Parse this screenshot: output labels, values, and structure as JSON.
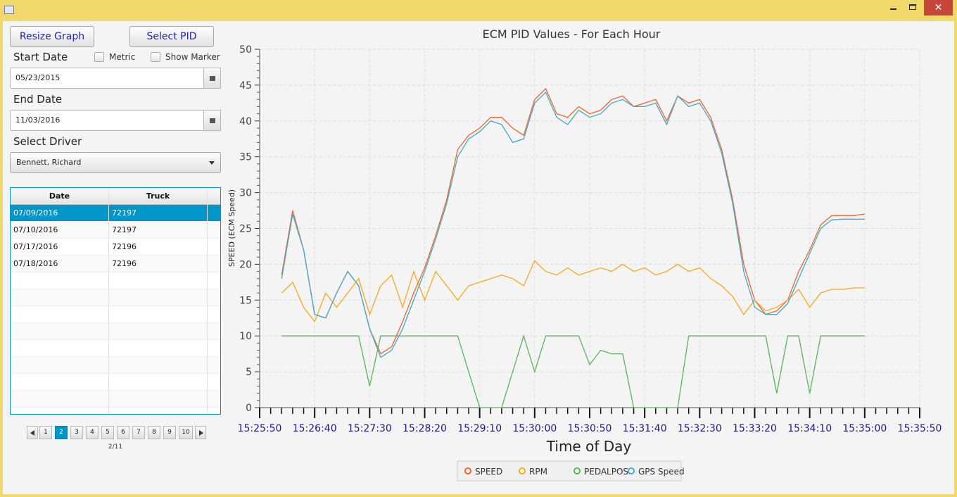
{
  "controls": {
    "resize_button": "Resize Graph",
    "pid_button": "Select PID",
    "start_label": "Start Date",
    "metric_label": "Metric",
    "marker_label": "Show Marker",
    "start_date": "05/23/2015",
    "end_label": "End Date",
    "end_date": "11/03/2016",
    "driver_label": "Select Driver",
    "driver": "Bennett, Richard"
  },
  "table": {
    "columns": [
      "Date",
      "Truck"
    ],
    "rows": [
      [
        "07/09/2016",
        "72197"
      ],
      [
        "07/10/2016",
        "72197"
      ],
      [
        "07/17/2016",
        "72196"
      ],
      [
        "07/18/2016",
        "72196"
      ]
    ],
    "selected_row": 0
  },
  "pagination": {
    "pages": [
      "1",
      "2",
      "3",
      "4",
      "5",
      "6",
      "7",
      "8",
      "9",
      "10"
    ],
    "current_index": 1,
    "status": "2/11"
  },
  "chart_data": {
    "type": "line",
    "title": "ECM PID Values - For Each Hour",
    "x_label": "Time of Day",
    "y_label": "SPEED  (ECM Speed)",
    "x": [
      55570,
      55580,
      55590,
      55600,
      55610,
      55620,
      55630,
      55640,
      55650,
      55660,
      55670,
      55680,
      55690,
      55700,
      55710,
      55720,
      55730,
      55740,
      55750,
      55760,
      55770,
      55780,
      55790,
      55800,
      55810,
      55820,
      55830,
      55840,
      55850,
      55860,
      55870,
      55880,
      55890,
      55900,
      55910,
      55920,
      55930,
      55940,
      55950,
      55960,
      55970,
      55980,
      55990,
      56000,
      56010,
      56020,
      56030,
      56040,
      56050,
      56060,
      56070,
      56080,
      56090,
      56100
    ],
    "xlim": [
      55550,
      56150
    ],
    "xticks": [
      {
        "value": 55550,
        "label": "15:25:50"
      },
      {
        "value": 55600,
        "label": "15:26:40"
      },
      {
        "value": 55650,
        "label": "15:27:30"
      },
      {
        "value": 55700,
        "label": "15:28:20"
      },
      {
        "value": 55750,
        "label": "15:29:10"
      },
      {
        "value": 55800,
        "label": "15:30:00"
      },
      {
        "value": 55850,
        "label": "15:30:50"
      },
      {
        "value": 55900,
        "label": "15:31:40"
      },
      {
        "value": 55950,
        "label": "15:32:30"
      },
      {
        "value": 56000,
        "label": "15:33:20"
      },
      {
        "value": 56050,
        "label": "15:34:10"
      },
      {
        "value": 56100,
        "label": "15:35:00"
      },
      {
        "value": 56150,
        "label": "15:35:50"
      }
    ],
    "ylim": [
      0,
      50
    ],
    "yticks": [
      0,
      5,
      10,
      15,
      20,
      25,
      30,
      35,
      40,
      45,
      50
    ],
    "grid": true,
    "series": [
      {
        "name": "SPEED",
        "color": "#f3622d",
        "values": [
          18.5,
          27.5,
          22,
          13,
          12.5,
          16,
          19,
          17,
          11,
          7.5,
          8.5,
          12,
          16,
          19.5,
          24,
          29,
          36,
          38,
          39,
          40.5,
          40.5,
          39,
          38,
          43,
          44.5,
          41,
          40.5,
          42,
          41,
          41.5,
          43,
          43.5,
          42,
          42.5,
          43,
          40,
          43.5,
          42.5,
          43,
          40.5,
          36,
          29,
          20,
          15,
          13,
          13.5,
          15,
          19,
          22,
          25.5,
          26.8,
          26.8,
          26.8,
          27
        ]
      },
      {
        "name": "RPM",
        "color": "#fba71b",
        "values": [
          16,
          17.5,
          14,
          12,
          16,
          14,
          16,
          18,
          13,
          17,
          18.5,
          14,
          19,
          15,
          19,
          17,
          15,
          17,
          17.5,
          18,
          18.5,
          18,
          17,
          20.5,
          19,
          18.5,
          19.5,
          18.5,
          19,
          19.5,
          19,
          20,
          19,
          19.5,
          18.5,
          19,
          20,
          19,
          19.5,
          18,
          17,
          15.5,
          13,
          15,
          13.5,
          14,
          15,
          16.5,
          14,
          16,
          16.5,
          16.5,
          16.7,
          16.7
        ]
      },
      {
        "name": "PEDALPOS",
        "color": "#57b757",
        "values": [
          10,
          10,
          10,
          10,
          10,
          10,
          10,
          10,
          3,
          10,
          10,
          10,
          10,
          10,
          10,
          10,
          10,
          5,
          0,
          0,
          0,
          5,
          10,
          5,
          10,
          10,
          10,
          10,
          6,
          8,
          7.5,
          7.5,
          0,
          0,
          0,
          0,
          0,
          10,
          10,
          10,
          10,
          10,
          10,
          10,
          10,
          2,
          10,
          10,
          2,
          10,
          10,
          10,
          10,
          10
        ]
      },
      {
        "name": "GPS Speed",
        "color": "#41a9c9",
        "values": [
          18,
          27,
          22,
          13,
          12.5,
          16,
          19,
          17,
          11,
          7,
          8,
          11,
          15,
          19,
          23.5,
          28.5,
          35,
          37.5,
          38.5,
          40,
          39.5,
          37,
          37.5,
          42.5,
          44,
          40.5,
          39.5,
          41.5,
          40.5,
          41,
          42.5,
          43,
          42,
          42,
          42.5,
          39.5,
          43.5,
          42,
          42.5,
          40,
          35.5,
          28.5,
          19,
          14,
          13,
          13,
          14.5,
          18,
          21.5,
          25,
          26.2,
          26.3,
          26.3,
          26.3
        ]
      }
    ]
  }
}
